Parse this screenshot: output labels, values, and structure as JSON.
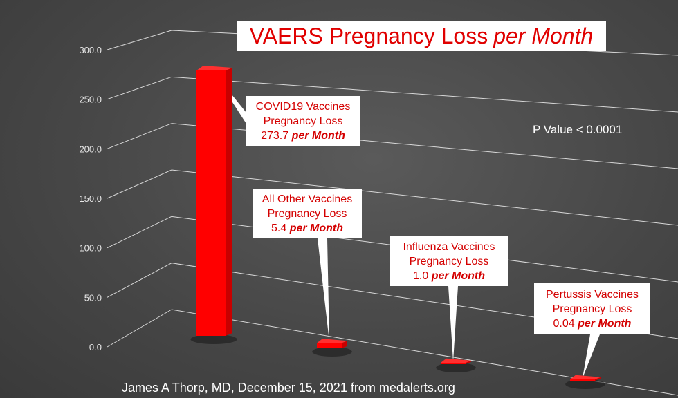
{
  "chart_data": {
    "type": "bar",
    "title_main": "VAERS Pregnancy Loss",
    "title_emph": "per Month",
    "y_ticks": [
      "0.0",
      "50.0",
      "100.0",
      "150.0",
      "200.0",
      "250.0",
      "300.0"
    ],
    "ylim": [
      0,
      300
    ],
    "grid": true,
    "categories": [
      "COVID19 Vaccines",
      "All Other Vaccines",
      "Influenza Vaccines",
      "Pertussis Vaccines"
    ],
    "values": [
      273.7,
      5.4,
      1.0,
      0.04
    ],
    "callouts": [
      {
        "line1": "COVID19 Vaccines",
        "line2": "Pregnancy Loss",
        "value": "273.7",
        "unit": "per Month"
      },
      {
        "line1": "All Other Vaccines",
        "line2": "Pregnancy Loss",
        "value": "5.4",
        "unit": "per Month"
      },
      {
        "line1": "Influenza Vaccines",
        "line2": "Pregnancy Loss",
        "value": "1.0",
        "unit": "per Month"
      },
      {
        "line1": "Pertussis Vaccines",
        "line2": "Pregnancy Loss",
        "value": "0.04",
        "unit": "per Month"
      }
    ],
    "annotation": "P Value < 0.0001",
    "credit": "James A Thorp, MD, December 15, 2021 from medalerts.org",
    "colors": {
      "bar": "#ff0000",
      "callout_text": "#d40000",
      "background": "#474747"
    }
  }
}
